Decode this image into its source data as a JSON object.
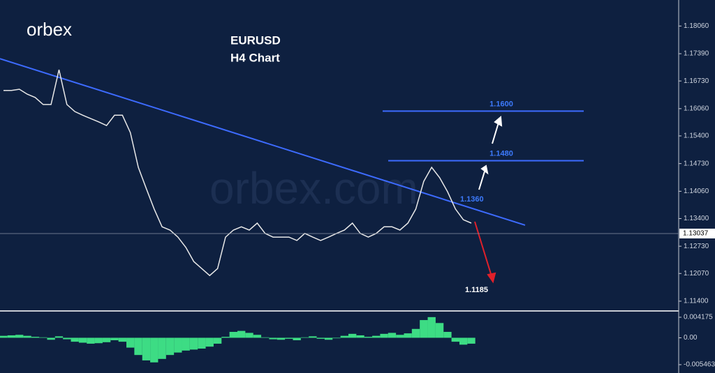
{
  "logo": "orbex",
  "watermark": "orbex.com",
  "chart_data": [
    {
      "type": "line",
      "title": "EURUSD",
      "subtitle": "H4 Chart",
      "color": "#e8e8e8",
      "values": [
        1.165,
        1.165,
        1.1653,
        1.1641,
        1.1633,
        1.1616,
        1.1616,
        1.17,
        1.1616,
        1.1599,
        1.159,
        1.1582,
        1.1574,
        1.1565,
        1.159,
        1.159,
        1.1548,
        1.1464,
        1.1413,
        1.1363,
        1.132,
        1.1312,
        1.1295,
        1.127,
        1.1236,
        1.1219,
        1.1202,
        1.1219,
        1.1295,
        1.1312,
        1.132,
        1.1312,
        1.1329,
        1.1304,
        1.1295,
        1.1295,
        1.1295,
        1.1287,
        1.1304,
        1.1295,
        1.1287,
        1.1295,
        1.1304,
        1.1312,
        1.1329,
        1.1304,
        1.1295,
        1.1304,
        1.132,
        1.132,
        1.1312,
        1.1329,
        1.1363,
        1.143,
        1.1464,
        1.1439,
        1.1405,
        1.1363,
        1.1337,
        1.1329
      ],
      "ylim": [
        1.1118,
        1.1869
      ],
      "yticks": [
        {
          "value": 1.1806,
          "label": "1.18060"
        },
        {
          "value": 1.1739,
          "label": "1.17390"
        },
        {
          "value": 1.1673,
          "label": "1.16730"
        },
        {
          "value": 1.1606,
          "label": "1.16060"
        },
        {
          "value": 1.154,
          "label": "1.15400"
        },
        {
          "value": 1.1473,
          "label": "1.14730"
        },
        {
          "value": 1.1406,
          "label": "1.14060"
        },
        {
          "value": 1.134,
          "label": "1.13400"
        },
        {
          "value": 1.1273,
          "label": "1.12730"
        },
        {
          "value": 1.1207,
          "label": "1.12070"
        },
        {
          "value": 1.114,
          "label": "1.11400"
        }
      ],
      "last_price": 1.13037,
      "levels": [
        {
          "value": 1.16,
          "label": "1.1600"
        },
        {
          "value": 1.148,
          "label": "1.1480"
        }
      ],
      "trendline": {
        "start": 1.1727,
        "end": 1.1324,
        "color": "#3d6bff"
      },
      "annotations": [
        "1.1360",
        "1.1185"
      ]
    },
    {
      "type": "bar",
      "color": "#3ddc84",
      "values": [
        0.0004,
        0.0005,
        0.0006,
        0.0004,
        0.0002,
        0.0001,
        -0.0004,
        0.0003,
        -0.0003,
        -0.0008,
        -0.001,
        -0.0012,
        -0.0011,
        -0.0009,
        -0.0005,
        -0.0008,
        -0.002,
        -0.0035,
        -0.0046,
        -0.005,
        -0.0043,
        -0.0035,
        -0.003,
        -0.0026,
        -0.0024,
        -0.0022,
        -0.0018,
        -0.0012,
        0.0002,
        0.0012,
        0.0014,
        0.001,
        0.0006,
        0.0001,
        -0.0003,
        -0.0004,
        -0.0002,
        -0.0005,
        0.0001,
        0.0003,
        -0.0002,
        -0.0004,
        -0.0001,
        0.0004,
        0.0008,
        0.0005,
        0.0002,
        0.0004,
        0.0008,
        0.001,
        0.0006,
        0.0009,
        0.0018,
        0.0036,
        0.0042,
        0.003,
        0.0012,
        -0.0008,
        -0.0014,
        -0.0012
      ],
      "ylim": [
        -0.00716,
        0.00517
      ],
      "yticks": [
        0.004175,
        {
          "value": 0,
          "label": "0.00"
        },
        -0.005463
      ]
    }
  ]
}
